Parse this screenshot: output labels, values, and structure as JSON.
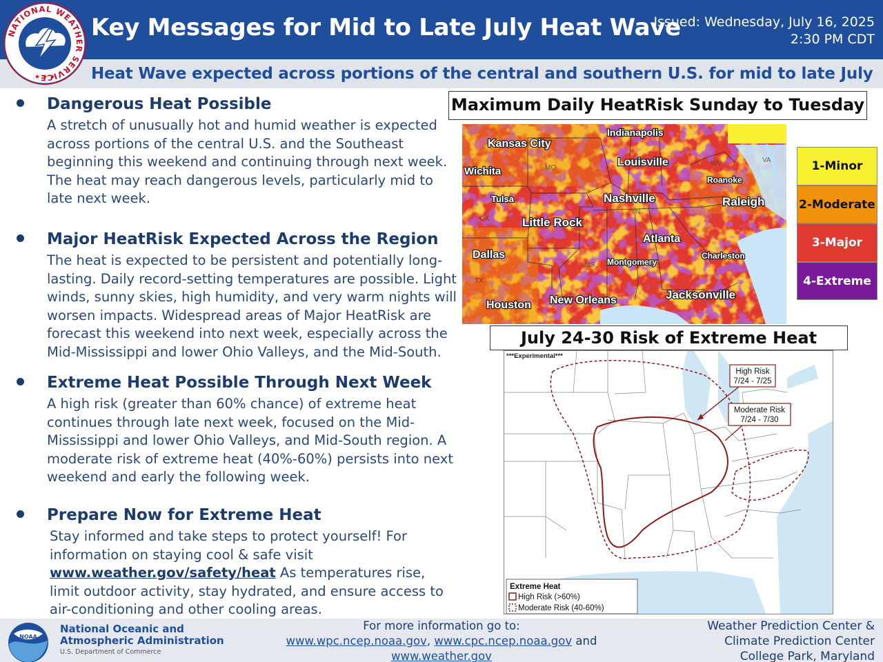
{
  "header": {
    "title": "Key Messages for Mid to Late July Heat Wave",
    "issued_line1": "Issued: Wednesday, July 16, 2025",
    "issued_line2": "2:30 PM CDT",
    "subtitle": "Heat Wave expected across portions of the central and southern U.S. for mid to late July",
    "logo_text": "NATIONAL WEATHER SERVICE"
  },
  "messages": [
    {
      "heading": "Dangerous Heat Possible",
      "body": "A stretch of unusually hot and humid weather is expected across portions of the central U.S. and the Southeast beginning this weekend and continuing through next week. The heat may reach dangerous levels, particularly mid to late next week."
    },
    {
      "heading": "Major HeatRisk Expected Across the Region",
      "body": "The heat is expected to be persistent and potentially long-lasting. Daily record-setting temperatures are possible. Light winds, sunny skies, high humidity, and very warm nights will worsen impacts. Widespread areas of Major HeatRisk are forecast this weekend into next week, especially across the Mid-Mississippi and lower Ohio Valleys, and the Mid-South."
    },
    {
      "heading": "Extreme Heat Possible Through Next Week",
      "body": "A high risk (greater than 60% chance) of extreme heat continues through late next week, focused on the Mid-Mississippi and lower Ohio Valleys, and Mid-South region. A moderate risk of extreme heat (40%-60%) persists into next weekend and early the following week."
    },
    {
      "heading": "Prepare Now for Extreme Heat",
      "body_before": "Stay informed and take steps to protect yourself! For information on staying cool & safe visit ",
      "link": "www.weather.gov/safety/heat",
      "body_after": " As temperatures rise, limit outdoor activity, stay hydrated, and ensure access to air-conditioning and other cooling areas."
    }
  ],
  "heatrisk_map": {
    "title": "Maximum Daily HeatRisk Sunday to Tuesday",
    "cities": [
      "Indianapolis",
      "Kansas City",
      "Louisville",
      "Wichita",
      "Roanoke",
      "Tulsa",
      "Nashville",
      "Raleigh",
      "Little Rock",
      "Atlanta",
      "Dallas",
      "Montgomery",
      "Charleston",
      "Houston",
      "New Orleans",
      "Jacksonville"
    ],
    "states": [
      "MO",
      "WV",
      "VA",
      "OK",
      "TN",
      "MS",
      "TX"
    ],
    "legend": [
      {
        "label": "1-Minor",
        "color": "#f6f030"
      },
      {
        "label": "2-Moderate",
        "color": "#f0920c"
      },
      {
        "label": "3-Major",
        "color": "#e03a30"
      },
      {
        "label": "4-Extreme",
        "color": "#7a1a9a"
      }
    ]
  },
  "extreme_map": {
    "title": "July 24-30 Risk of Extreme Heat",
    "experimental": "***Experimental***",
    "high_callout_1": "High Risk",
    "high_callout_2": "7/24 - 7/25",
    "moderate_callout_1": "Moderate Risk",
    "moderate_callout_2": "7/24 - 7/30",
    "legend_title": "Extreme Heat",
    "legend_high": "High Risk (>60%)",
    "legend_moderate": "Moderate Risk (40-60%)",
    "risk_color": "#8b1a1a"
  },
  "footer": {
    "noaa_name_1": "National Oceanic and",
    "noaa_name_2": "Atmospheric Administration",
    "noaa_dept": "U.S. Department of Commerce",
    "more_info": "For more information go to:",
    "link_wpc": "www.wpc.ncep.noaa.gov",
    "link_cpc": "www.cpc.ncep.noaa.gov",
    "and": "and",
    "link_nws": "www.weather.gov",
    "center_1": "Weather Prediction Center &",
    "center_2": "Climate Prediction Center",
    "center_3": "College Park, Maryland"
  }
}
